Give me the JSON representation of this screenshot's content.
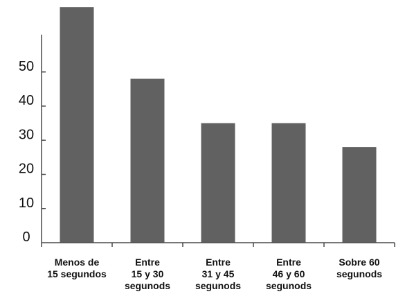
{
  "chart_data": {
    "type": "bar",
    "categories": [
      [
        "Menos de",
        "15 segundos"
      ],
      [
        "Entre",
        "15 y 30",
        "segunods"
      ],
      [
        "Entre",
        "31 y 45",
        "segunods"
      ],
      [
        "Entre",
        "46 y 60",
        "segunods"
      ],
      [
        "Sobre 60",
        "segunods"
      ]
    ],
    "values": [
      69,
      48,
      35,
      35,
      28
    ],
    "yticks": [
      0,
      10,
      20,
      30,
      40,
      50
    ],
    "ylim": [
      0,
      70
    ],
    "bar_color": "#616161",
    "axis_color": "#4a4a4a",
    "title": "",
    "xlabel": "",
    "ylabel": "",
    "grid": false,
    "legend": "none"
  }
}
